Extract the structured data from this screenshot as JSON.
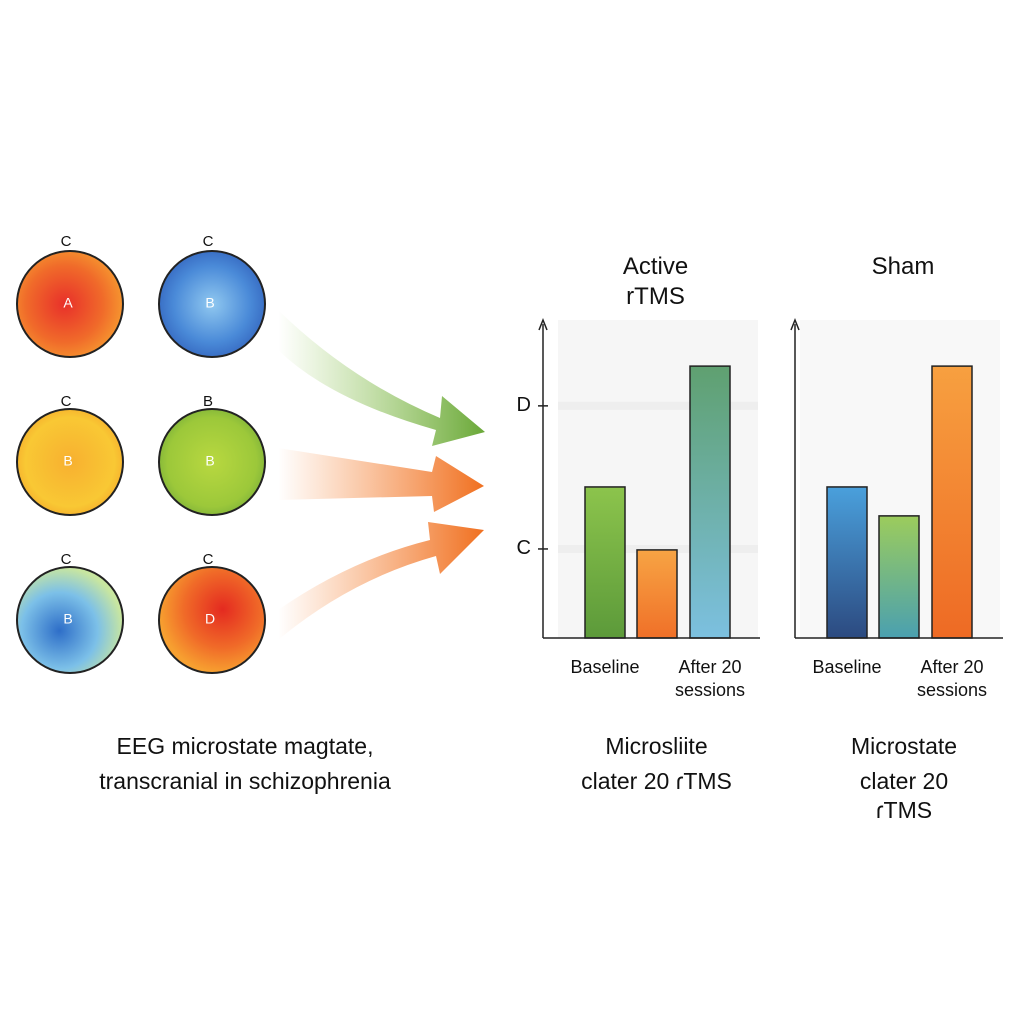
{
  "maps": [
    {
      "top": "C",
      "center": "A"
    },
    {
      "top": "C",
      "center": "B"
    },
    {
      "top": "C",
      "center": "B"
    },
    {
      "top": "B",
      "center": "B"
    },
    {
      "top": "C",
      "center": "B"
    },
    {
      "top": "C",
      "center": "D"
    }
  ],
  "caption": [
    "EEG microstate magtate,",
    "transcranial in schizophrenia"
  ],
  "chart_data": [
    {
      "type": "bar",
      "title": "Active rTMS",
      "categories": [
        "Baseline",
        null,
        "After 20 sessions"
      ],
      "values": [
        47.5,
        27.7,
        85.5
      ],
      "colors": [
        [
          "#8cc44c",
          "#5c9a3a"
        ],
        [
          "#f7a444",
          "#f07028"
        ],
        [
          "#5fa070",
          "#7cc0e0"
        ]
      ],
      "ylim": [
        0,
        100
      ],
      "yticks": [
        {
          "value": 28,
          "label": "C"
        },
        {
          "value": 73,
          "label": "D"
        }
      ],
      "grid": true,
      "caption": [
        "Microsliite",
        "clater 20 ɾTMS"
      ]
    },
    {
      "type": "bar",
      "title": "Sham",
      "categories": [
        "Baseline",
        null,
        "After 20 sessions"
      ],
      "values": [
        47.5,
        38.4,
        85.5
      ],
      "colors": [
        [
          "#4aa0dc",
          "#2c4a80"
        ],
        [
          "#9ccc5c",
          "#4aa0b0"
        ],
        [
          "#f7a040",
          "#ee6a24"
        ]
      ],
      "ylim": [
        0,
        100
      ],
      "yticks": [],
      "grid": false,
      "caption": [
        "Microstate",
        "clater 20 ɾTMS"
      ]
    }
  ]
}
